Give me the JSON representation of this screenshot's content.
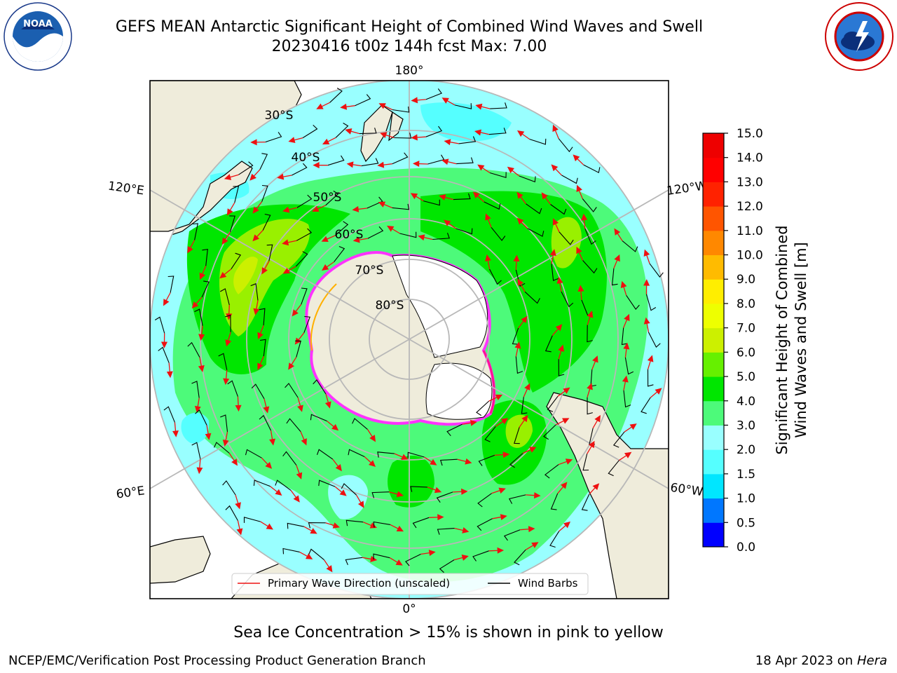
{
  "title": {
    "line1": "GEFS MEAN Antarctic Significant Height of Combined Wind Waves and Swell",
    "line2": "20230416 t00z 144h fcst   Max: 7.00"
  },
  "logos": {
    "left": "noaa-logo",
    "right": "nws-logo"
  },
  "map": {
    "projection": "south-polar-stereographic",
    "center_lat": -90,
    "boundary_lat": -25,
    "meridian_labels": [
      "180°",
      "120°E",
      "120°W",
      "60°E",
      "60°W",
      "0°"
    ],
    "parallel_labels": [
      "30°S",
      "40°S",
      "50°S",
      "60°S",
      "70°S",
      "80°S"
    ],
    "colors": {
      "land": "#efecdb",
      "ice_edge": "#ff33ff",
      "grid": "#b8b8b8",
      "wave_arrow": "#ee1111",
      "wind_barb": "#000000"
    }
  },
  "legend": {
    "items": [
      {
        "label": "Primary Wave Direction (unscaled)",
        "color": "#ee1111"
      },
      {
        "label": "Wind Barbs",
        "color": "#000000"
      }
    ]
  },
  "colorbar": {
    "title_line1": "Significant Height of Combined",
    "title_line2": "Wind Waves and Swell [m]",
    "ticks": [
      "0.0",
      "0.5",
      "1.0",
      "1.5",
      "2.0",
      "3.0",
      "4.0",
      "5.0",
      "6.0",
      "7.0",
      "8.0",
      "9.0",
      "10.0",
      "11.0",
      "12.0",
      "13.0",
      "14.0",
      "15.0"
    ],
    "colors": [
      "#0000ff",
      "#0077ff",
      "#00e6ff",
      "#55ffff",
      "#99ffff",
      "#4dfa7a",
      "#00e600",
      "#66f000",
      "#ccf000",
      "#eeff00",
      "#ffee00",
      "#ffbb00",
      "#ff8800",
      "#ff5500",
      "#ff2200",
      "#ff0000",
      "#ee0000"
    ]
  },
  "caption": "Sea Ice Concentration > 15% is shown in pink to yellow",
  "footer": {
    "left": "NCEP/EMC/Verification Post Processing Product Generation Branch",
    "right_date": "18 Apr 2023 on ",
    "right_host": "Hera"
  }
}
